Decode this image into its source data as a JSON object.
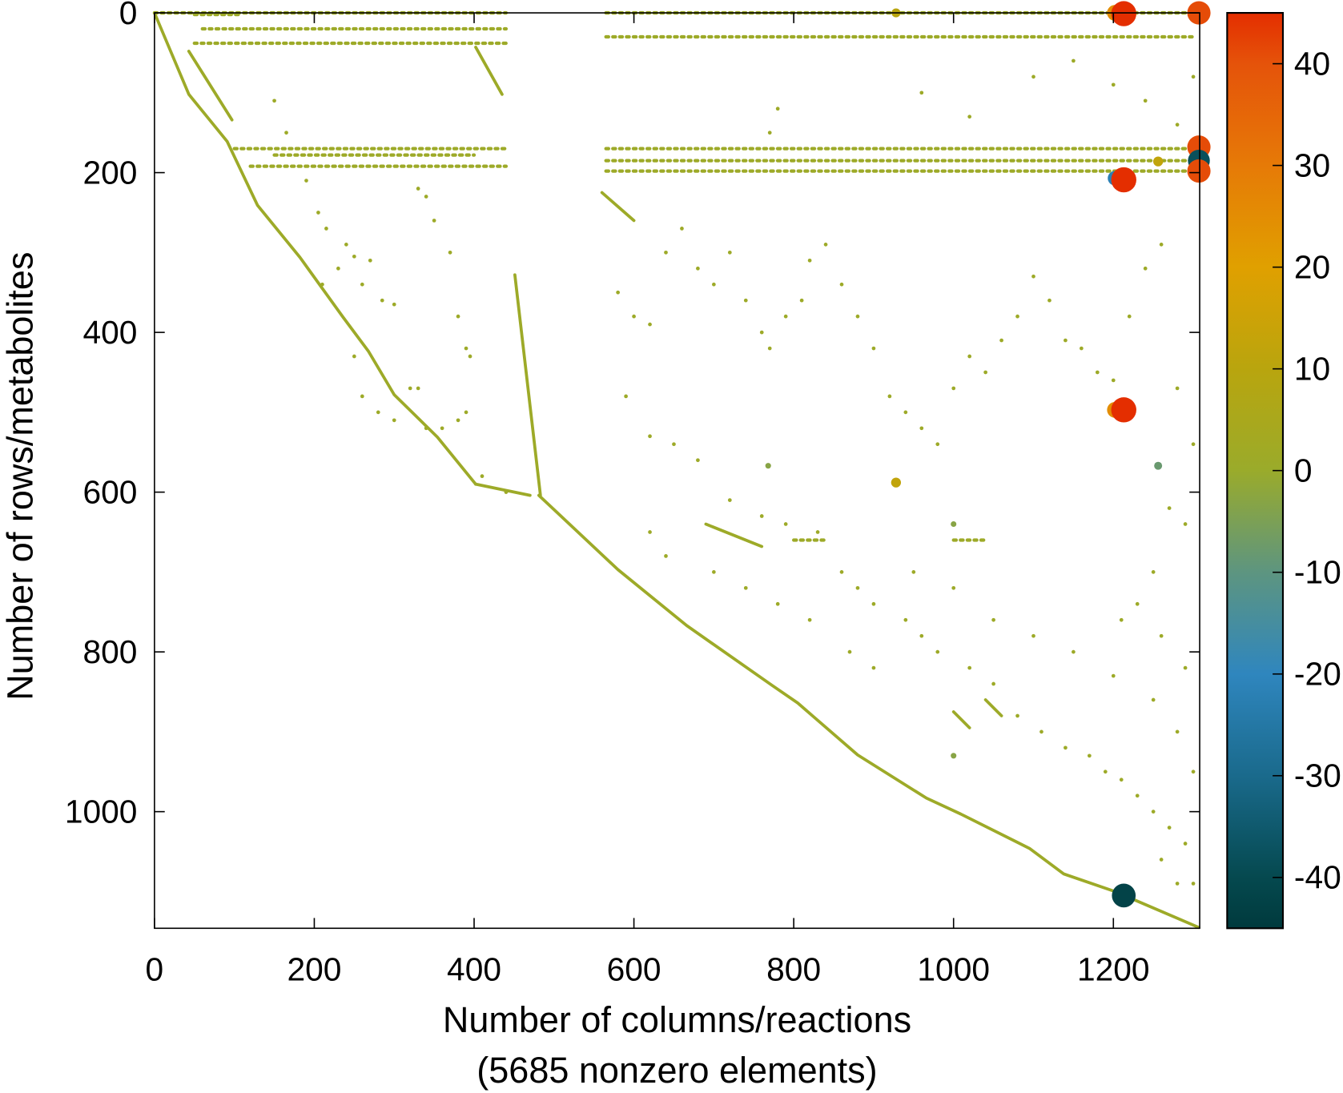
{
  "chart_data": {
    "type": "scatter",
    "subtype": "sparsity-pattern",
    "xlabel": "Number of columns/reactions",
    "xlabel_line2": "(5685 nonzero elements)",
    "ylabel": "Number of rows/metabolites",
    "xlim": [
      0,
      1308
    ],
    "ylim": [
      0,
      1146
    ],
    "y_inverted": true,
    "grid": false,
    "xticks": [
      0,
      200,
      400,
      600,
      800,
      1000,
      1200
    ],
    "xtick_labels": [
      "0",
      "200",
      "400",
      "600",
      "800",
      "1000",
      "1200"
    ],
    "yticks": [
      0,
      200,
      400,
      600,
      800,
      1000
    ],
    "ytick_labels": [
      "0",
      "200",
      "400",
      "600",
      "800",
      "1000"
    ],
    "colorbar": {
      "range": [
        -45,
        45
      ],
      "ticks": [
        40,
        30,
        20,
        10,
        0,
        -10,
        -20,
        -30,
        -40
      ],
      "tick_labels": [
        "40",
        "30",
        "20",
        "10",
        "0",
        "-10",
        "-20",
        "-30",
        "-40"
      ],
      "colors": [
        {
          "v": -45,
          "c": "#003a3d"
        },
        {
          "v": -40,
          "c": "#05494f"
        },
        {
          "v": -30,
          "c": "#1a6a8c"
        },
        {
          "v": -20,
          "c": "#2f86be"
        },
        {
          "v": -10,
          "c": "#5d9580"
        },
        {
          "v": 0,
          "c": "#9aab2b"
        },
        {
          "v": 10,
          "c": "#b9a50e"
        },
        {
          "v": 20,
          "c": "#e0a000"
        },
        {
          "v": 30,
          "c": "#e67a07"
        },
        {
          "v": 40,
          "c": "#e5530a"
        },
        {
          "v": 45,
          "c": "#e42e00"
        }
      ]
    },
    "default_value": 1,
    "diagonal_segments": [
      [
        [
          0,
          0
        ],
        [
          43,
          102
        ],
        [
          91,
          161
        ],
        [
          129,
          241
        ],
        [
          182,
          306
        ],
        [
          236,
          381
        ],
        [
          268,
          424
        ],
        [
          300,
          478
        ],
        [
          354,
          531
        ],
        [
          402,
          590
        ]
      ],
      [
        [
          481,
          604
        ],
        [
          580,
          697
        ],
        [
          666,
          767
        ],
        [
          773,
          842
        ],
        [
          805,
          864
        ],
        [
          880,
          929
        ],
        [
          966,
          983
        ],
        [
          1009,
          1003
        ],
        [
          1095,
          1046
        ],
        [
          1138,
          1078
        ],
        [
          1202,
          1100
        ],
        [
          1307,
          1145
        ]
      ],
      [
        [
          43,
          48
        ],
        [
          97,
          134
        ]
      ],
      [
        [
          402,
          43
        ],
        [
          435,
          102
        ]
      ],
      [
        [
          451,
          328
        ],
        [
          483,
          604
        ]
      ],
      [
        [
          402,
          590
        ],
        [
          470,
          604
        ]
      ],
      [
        [
          560,
          225
        ],
        [
          600,
          260
        ]
      ],
      [
        [
          690,
          640
        ],
        [
          760,
          668
        ]
      ],
      [
        [
          1040,
          860
        ],
        [
          1060,
          880
        ]
      ],
      [
        [
          1000,
          875
        ],
        [
          1020,
          895
        ]
      ]
    ],
    "row_bands": [
      {
        "row": 0,
        "cols": [
          0,
          440
        ]
      },
      {
        "row": 0,
        "cols": [
          565,
          1308
        ]
      },
      {
        "row": 2,
        "cols": [
          50,
          110
        ]
      },
      {
        "row": 20,
        "cols": [
          60,
          440
        ]
      },
      {
        "row": 30,
        "cols": [
          565,
          1300
        ]
      },
      {
        "row": 38,
        "cols": [
          50,
          440
        ]
      },
      {
        "row": 170,
        "cols": [
          100,
          440
        ]
      },
      {
        "row": 170,
        "cols": [
          565,
          1300
        ]
      },
      {
        "row": 178,
        "cols": [
          150,
          400
        ]
      },
      {
        "row": 185,
        "cols": [
          565,
          1300
        ]
      },
      {
        "row": 192,
        "cols": [
          120,
          440
        ]
      },
      {
        "row": 198,
        "cols": [
          565,
          1300
        ]
      },
      {
        "row": 660,
        "cols": [
          800,
          840
        ]
      },
      {
        "row": 660,
        "cols": [
          1000,
          1040
        ]
      }
    ],
    "points": [
      [
        150,
        110
      ],
      [
        165,
        150
      ],
      [
        190,
        210
      ],
      [
        205,
        250
      ],
      [
        215,
        270
      ],
      [
        240,
        290
      ],
      [
        250,
        305
      ],
      [
        260,
        340
      ],
      [
        285,
        360
      ],
      [
        300,
        365
      ],
      [
        320,
        470
      ],
      [
        330,
        470
      ],
      [
        250,
        430
      ],
      [
        260,
        480
      ],
      [
        280,
        500
      ],
      [
        300,
        510
      ],
      [
        340,
        520
      ],
      [
        360,
        520
      ],
      [
        380,
        510
      ],
      [
        330,
        220
      ],
      [
        340,
        230
      ],
      [
        350,
        260
      ],
      [
        370,
        300
      ],
      [
        380,
        380
      ],
      [
        390,
        420
      ],
      [
        395,
        430
      ],
      [
        210,
        340
      ],
      [
        230,
        320
      ],
      [
        270,
        310
      ],
      [
        390,
        500
      ],
      [
        410,
        580
      ],
      [
        440,
        600
      ],
      [
        580,
        350
      ],
      [
        600,
        380
      ],
      [
        620,
        390
      ],
      [
        640,
        300
      ],
      [
        660,
        270
      ],
      [
        680,
        320
      ],
      [
        700,
        340
      ],
      [
        720,
        300
      ],
      [
        740,
        360
      ],
      [
        760,
        400
      ],
      [
        770,
        420
      ],
      [
        790,
        380
      ],
      [
        810,
        360
      ],
      [
        820,
        310
      ],
      [
        840,
        290
      ],
      [
        860,
        340
      ],
      [
        880,
        380
      ],
      [
        900,
        420
      ],
      [
        920,
        480
      ],
      [
        940,
        500
      ],
      [
        960,
        520
      ],
      [
        980,
        540
      ],
      [
        1000,
        470
      ],
      [
        1020,
        430
      ],
      [
        1040,
        450
      ],
      [
        1060,
        410
      ],
      [
        1080,
        380
      ],
      [
        1100,
        330
      ],
      [
        1120,
        360
      ],
      [
        1140,
        410
      ],
      [
        1160,
        420
      ],
      [
        1180,
        450
      ],
      [
        1200,
        460
      ],
      [
        1220,
        380
      ],
      [
        1240,
        320
      ],
      [
        1260,
        290
      ],
      [
        1280,
        470
      ],
      [
        1300,
        540
      ],
      [
        590,
        480
      ],
      [
        620,
        530
      ],
      [
        650,
        540
      ],
      [
        680,
        560
      ],
      [
        720,
        610
      ],
      [
        760,
        630
      ],
      [
        790,
        640
      ],
      [
        830,
        650
      ],
      [
        860,
        700
      ],
      [
        880,
        720
      ],
      [
        900,
        740
      ],
      [
        940,
        760
      ],
      [
        960,
        780
      ],
      [
        980,
        800
      ],
      [
        1020,
        820
      ],
      [
        1050,
        840
      ],
      [
        1080,
        880
      ],
      [
        1110,
        900
      ],
      [
        1140,
        920
      ],
      [
        1170,
        930
      ],
      [
        1190,
        950
      ],
      [
        1210,
        960
      ],
      [
        1230,
        980
      ],
      [
        1250,
        1000
      ],
      [
        1270,
        1020
      ],
      [
        1290,
        1040
      ],
      [
        1300,
        1090
      ],
      [
        620,
        650
      ],
      [
        640,
        680
      ],
      [
        700,
        700
      ],
      [
        740,
        720
      ],
      [
        780,
        740
      ],
      [
        820,
        760
      ],
      [
        870,
        800
      ],
      [
        900,
        820
      ],
      [
        950,
        700
      ],
      [
        1000,
        720
      ],
      [
        1050,
        760
      ],
      [
        1100,
        780
      ],
      [
        1150,
        800
      ],
      [
        1200,
        830
      ],
      [
        1250,
        860
      ],
      [
        1280,
        900
      ],
      [
        1300,
        950
      ],
      [
        960,
        100
      ],
      [
        1020,
        130
      ],
      [
        770,
        150
      ],
      [
        780,
        120
      ],
      [
        1100,
        80
      ],
      [
        1150,
        60
      ],
      [
        1200,
        90
      ],
      [
        1240,
        110
      ],
      [
        1280,
        140
      ],
      [
        1300,
        80
      ],
      [
        1270,
        620
      ],
      [
        1290,
        640
      ],
      [
        1250,
        700
      ],
      [
        1230,
        740
      ],
      [
        1210,
        760
      ],
      [
        1260,
        780
      ],
      [
        1290,
        820
      ],
      [
        1260,
        1060
      ],
      [
        1280,
        1090
      ]
    ],
    "highlighted_points": [
      {
        "col": 1202,
        "row": 0,
        "value": 25
      },
      {
        "col": 1213,
        "row": 1,
        "value": 45
      },
      {
        "col": 1307,
        "row": 0,
        "value": 41
      },
      {
        "col": 1307,
        "row": 168,
        "value": 41
      },
      {
        "col": 1307,
        "row": 185,
        "value": -38
      },
      {
        "col": 1307,
        "row": 198,
        "value": 41
      },
      {
        "col": 1202,
        "row": 207,
        "value": -22
      },
      {
        "col": 1213,
        "row": 209,
        "value": 45
      },
      {
        "col": 1202,
        "row": 497,
        "value": 25
      },
      {
        "col": 1213,
        "row": 497,
        "value": 45
      },
      {
        "col": 1213,
        "row": 1105,
        "value": -42
      },
      {
        "col": 928,
        "row": 0,
        "value": 10
      },
      {
        "col": 928,
        "row": 588,
        "value": 12
      },
      {
        "col": 1256,
        "row": 567,
        "value": -8
      },
      {
        "col": 1256,
        "row": 186,
        "value": 12
      },
      {
        "col": 768,
        "row": 567,
        "value": -3
      },
      {
        "col": 1000,
        "row": 640,
        "value": -3
      },
      {
        "col": 1000,
        "row": 930,
        "value": -3
      }
    ]
  }
}
